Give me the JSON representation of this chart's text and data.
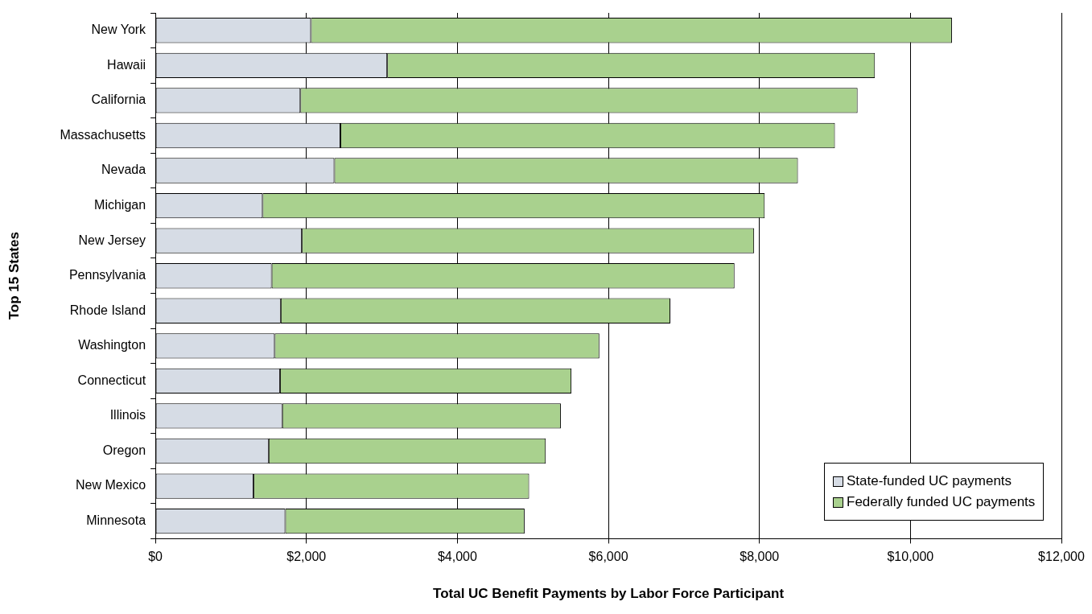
{
  "chart_data": {
    "type": "bar",
    "orientation": "horizontal",
    "stacked": true,
    "xlabel": "Total UC Benefit Payments by Labor Force Participant",
    "ylabel": "Top 15 States",
    "categories": [
      "New York",
      "Hawaii",
      "California",
      "Massachusetts",
      "Nevada",
      "Michigan",
      "New Jersey",
      "Pennsylvania",
      "Rhode Island",
      "Washington",
      "Connecticut",
      "Illinois",
      "Oregon",
      "New Mexico",
      "Minnesota"
    ],
    "series": [
      {
        "name": "State-funded UC payments",
        "color": "#d6dce5",
        "values": [
          2060,
          3070,
          1920,
          2450,
          2370,
          1420,
          1940,
          1540,
          1660,
          1580,
          1650,
          1680,
          1500,
          1300,
          1720
        ]
      },
      {
        "name": "Federally funded UC payments",
        "color": "#a9d18e",
        "values": [
          8490,
          6460,
          7380,
          6550,
          6140,
          6650,
          5990,
          6130,
          5160,
          4300,
          3860,
          3690,
          3670,
          3650,
          3170
        ]
      }
    ],
    "xlim": [
      0,
      12000
    ],
    "xticks": [
      {
        "value": 0,
        "label": "$0"
      },
      {
        "value": 2000,
        "label": "$2,000"
      },
      {
        "value": 4000,
        "label": "$4,000"
      },
      {
        "value": 6000,
        "label": "$6,000"
      },
      {
        "value": 8000,
        "label": "$8,000"
      },
      {
        "value": 10000,
        "label": "$10,000"
      },
      {
        "value": 12000,
        "label": "$12,000"
      }
    ],
    "grid": "x",
    "legend": "bottom right"
  }
}
